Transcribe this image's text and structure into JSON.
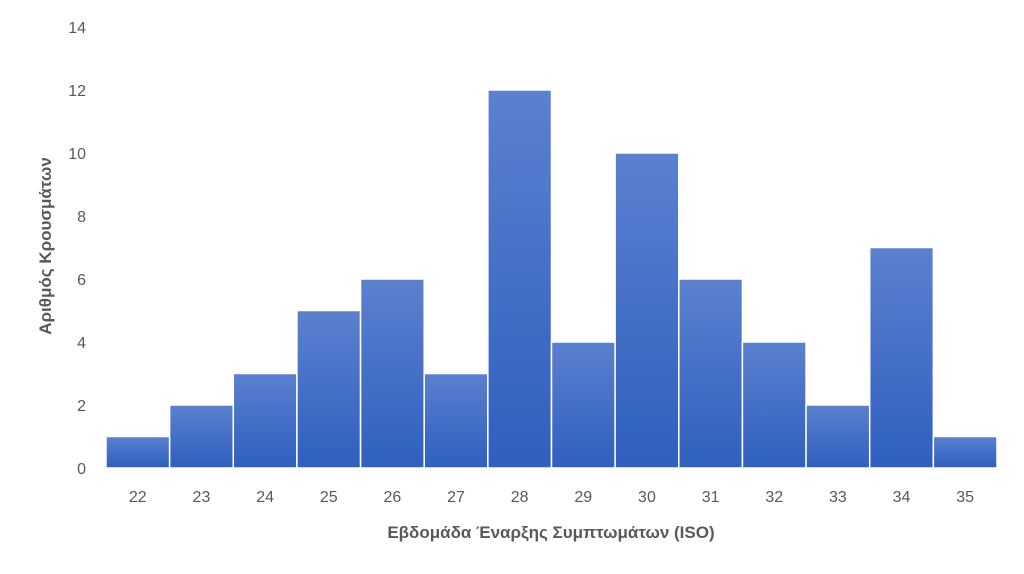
{
  "chart_data": {
    "type": "bar",
    "categories": [
      "22",
      "23",
      "24",
      "25",
      "26",
      "27",
      "28",
      "29",
      "30",
      "31",
      "32",
      "33",
      "34",
      "35"
    ],
    "values": [
      1,
      2,
      3,
      5,
      6,
      3,
      12,
      4,
      10,
      6,
      4,
      2,
      7,
      1
    ],
    "ylim": [
      0,
      14
    ],
    "yticks": [
      "0",
      "2",
      "4",
      "6",
      "8",
      "10",
      "12",
      "14"
    ],
    "xlabel": "Εβδομάδα Έναρξης Συμπτωμάτων (ISO)",
    "ylabel": "Αριθμός Κρουσμάτων",
    "grid": false,
    "legend": "none",
    "colors": {
      "bar_top": "#5b80cf",
      "bar_bottom": "#2f5fbf",
      "bar_stroke": "#ffffff",
      "text": "#595959"
    }
  }
}
